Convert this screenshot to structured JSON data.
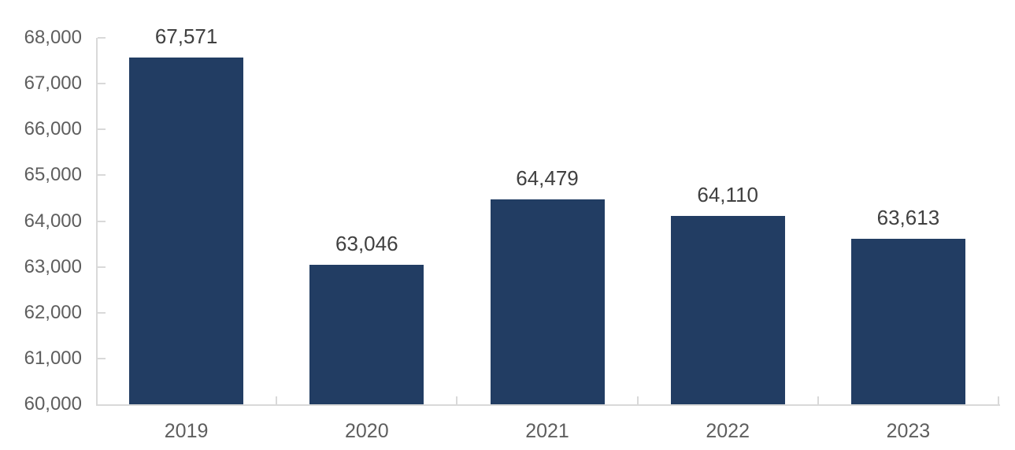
{
  "chart_data": {
    "type": "bar",
    "title": "",
    "xlabel": "",
    "ylabel": "",
    "categories": [
      "2019",
      "2020",
      "2021",
      "2022",
      "2023"
    ],
    "values": [
      67571,
      63046,
      64479,
      64110,
      63613
    ],
    "value_labels": [
      "67,571",
      "63,046",
      "64,479",
      "64,110",
      "63,613"
    ],
    "ylim": [
      60000,
      68000
    ],
    "ytick_interval": 1000,
    "ytick_labels": [
      "60,000",
      "61,000",
      "62,000",
      "63,000",
      "64,000",
      "65,000",
      "66,000",
      "67,000",
      "68,000"
    ],
    "grid": false,
    "legend": "none",
    "colors": {
      "bar": "#223D63",
      "axis_line": "#D9D9D9",
      "tick": "#D9D9D9",
      "axis_label": "#5E5E5E",
      "data_label": "#404040",
      "background": "#FFFFFF"
    }
  }
}
